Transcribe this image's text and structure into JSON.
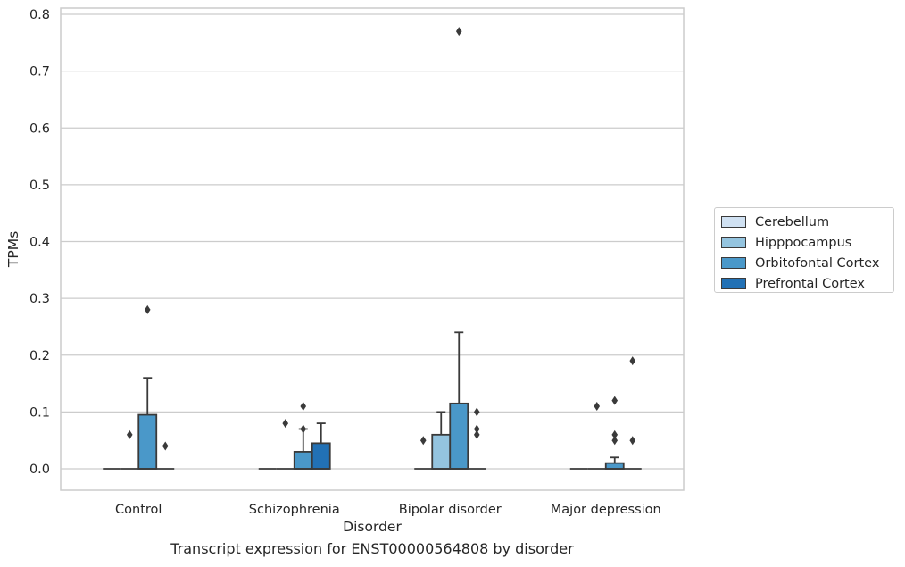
{
  "caption": "Transcript expression for ENST00000564808 by disorder",
  "chart_data": {
    "type": "box",
    "xlabel": "Disorder",
    "ylabel": "TPMs",
    "ylim": [
      -0.038,
      0.812
    ],
    "yticks": [
      "0.0",
      "0.1",
      "0.2",
      "0.3",
      "0.4",
      "0.5",
      "0.6",
      "0.7",
      "0.8"
    ],
    "grid": "horizontal",
    "legend_position": "right",
    "categories": [
      "Control",
      "Schizophrenia",
      "Bipolar disorder",
      "Major depression"
    ],
    "series": [
      {
        "name": "Cerebellum",
        "color": "#d0e1f2",
        "boxes": [
          {
            "q1": 0,
            "median": 0,
            "q3": 0,
            "whisker_low": 0,
            "whisker_high": 0,
            "outliers": []
          },
          {
            "q1": 0,
            "median": 0,
            "q3": 0,
            "whisker_low": 0,
            "whisker_high": 0,
            "outliers": []
          },
          {
            "q1": 0,
            "median": 0,
            "q3": 0,
            "whisker_low": 0,
            "whisker_high": 0,
            "outliers": [
              0.05
            ]
          },
          {
            "q1": 0,
            "median": 0,
            "q3": 0,
            "whisker_low": 0,
            "whisker_high": 0,
            "outliers": []
          }
        ]
      },
      {
        "name": "Hipppocampus",
        "color": "#94c4df",
        "boxes": [
          {
            "q1": 0,
            "median": 0,
            "q3": 0,
            "whisker_low": 0,
            "whisker_high": 0,
            "outliers": [
              0.06
            ]
          },
          {
            "q1": 0,
            "median": 0,
            "q3": 0,
            "whisker_low": 0,
            "whisker_high": 0,
            "outliers": [
              0.08
            ]
          },
          {
            "q1": 0,
            "median": 0,
            "q3": 0.06,
            "whisker_low": 0,
            "whisker_high": 0.1,
            "outliers": []
          },
          {
            "q1": 0,
            "median": 0,
            "q3": 0,
            "whisker_low": 0,
            "whisker_high": 0,
            "outliers": [
              0.11
            ]
          }
        ]
      },
      {
        "name": "Orbitofontal Cortex",
        "color": "#4a98c9",
        "boxes": [
          {
            "q1": 0,
            "median": 0,
            "q3": 0.095,
            "whisker_low": 0,
            "whisker_high": 0.16,
            "outliers": [
              0.28
            ]
          },
          {
            "q1": 0,
            "median": 0,
            "q3": 0.03,
            "whisker_low": 0,
            "whisker_high": 0.07,
            "outliers": [
              0.07,
              0.11
            ]
          },
          {
            "q1": 0,
            "median": 0,
            "q3": 0.115,
            "whisker_low": 0,
            "whisker_high": 0.24,
            "outliers": [
              0.77
            ]
          },
          {
            "q1": 0,
            "median": 0,
            "q3": 0.01,
            "whisker_low": 0,
            "whisker_high": 0.02,
            "outliers": [
              0.05,
              0.06,
              0.12
            ]
          }
        ]
      },
      {
        "name": "Prefrontal Cortex",
        "color": "#2271b5",
        "boxes": [
          {
            "q1": 0,
            "median": 0,
            "q3": 0,
            "whisker_low": 0,
            "whisker_high": 0,
            "outliers": [
              0.04
            ]
          },
          {
            "q1": 0,
            "median": 0,
            "q3": 0.045,
            "whisker_low": 0,
            "whisker_high": 0.08,
            "outliers": []
          },
          {
            "q1": 0,
            "median": 0,
            "q3": 0,
            "whisker_low": 0,
            "whisker_high": 0,
            "outliers": [
              0.06,
              0.07,
              0.1
            ]
          },
          {
            "q1": 0,
            "median": 0,
            "q3": 0,
            "whisker_low": 0,
            "whisker_high": 0,
            "outliers": [
              0.05,
              0.19
            ]
          }
        ]
      }
    ]
  }
}
